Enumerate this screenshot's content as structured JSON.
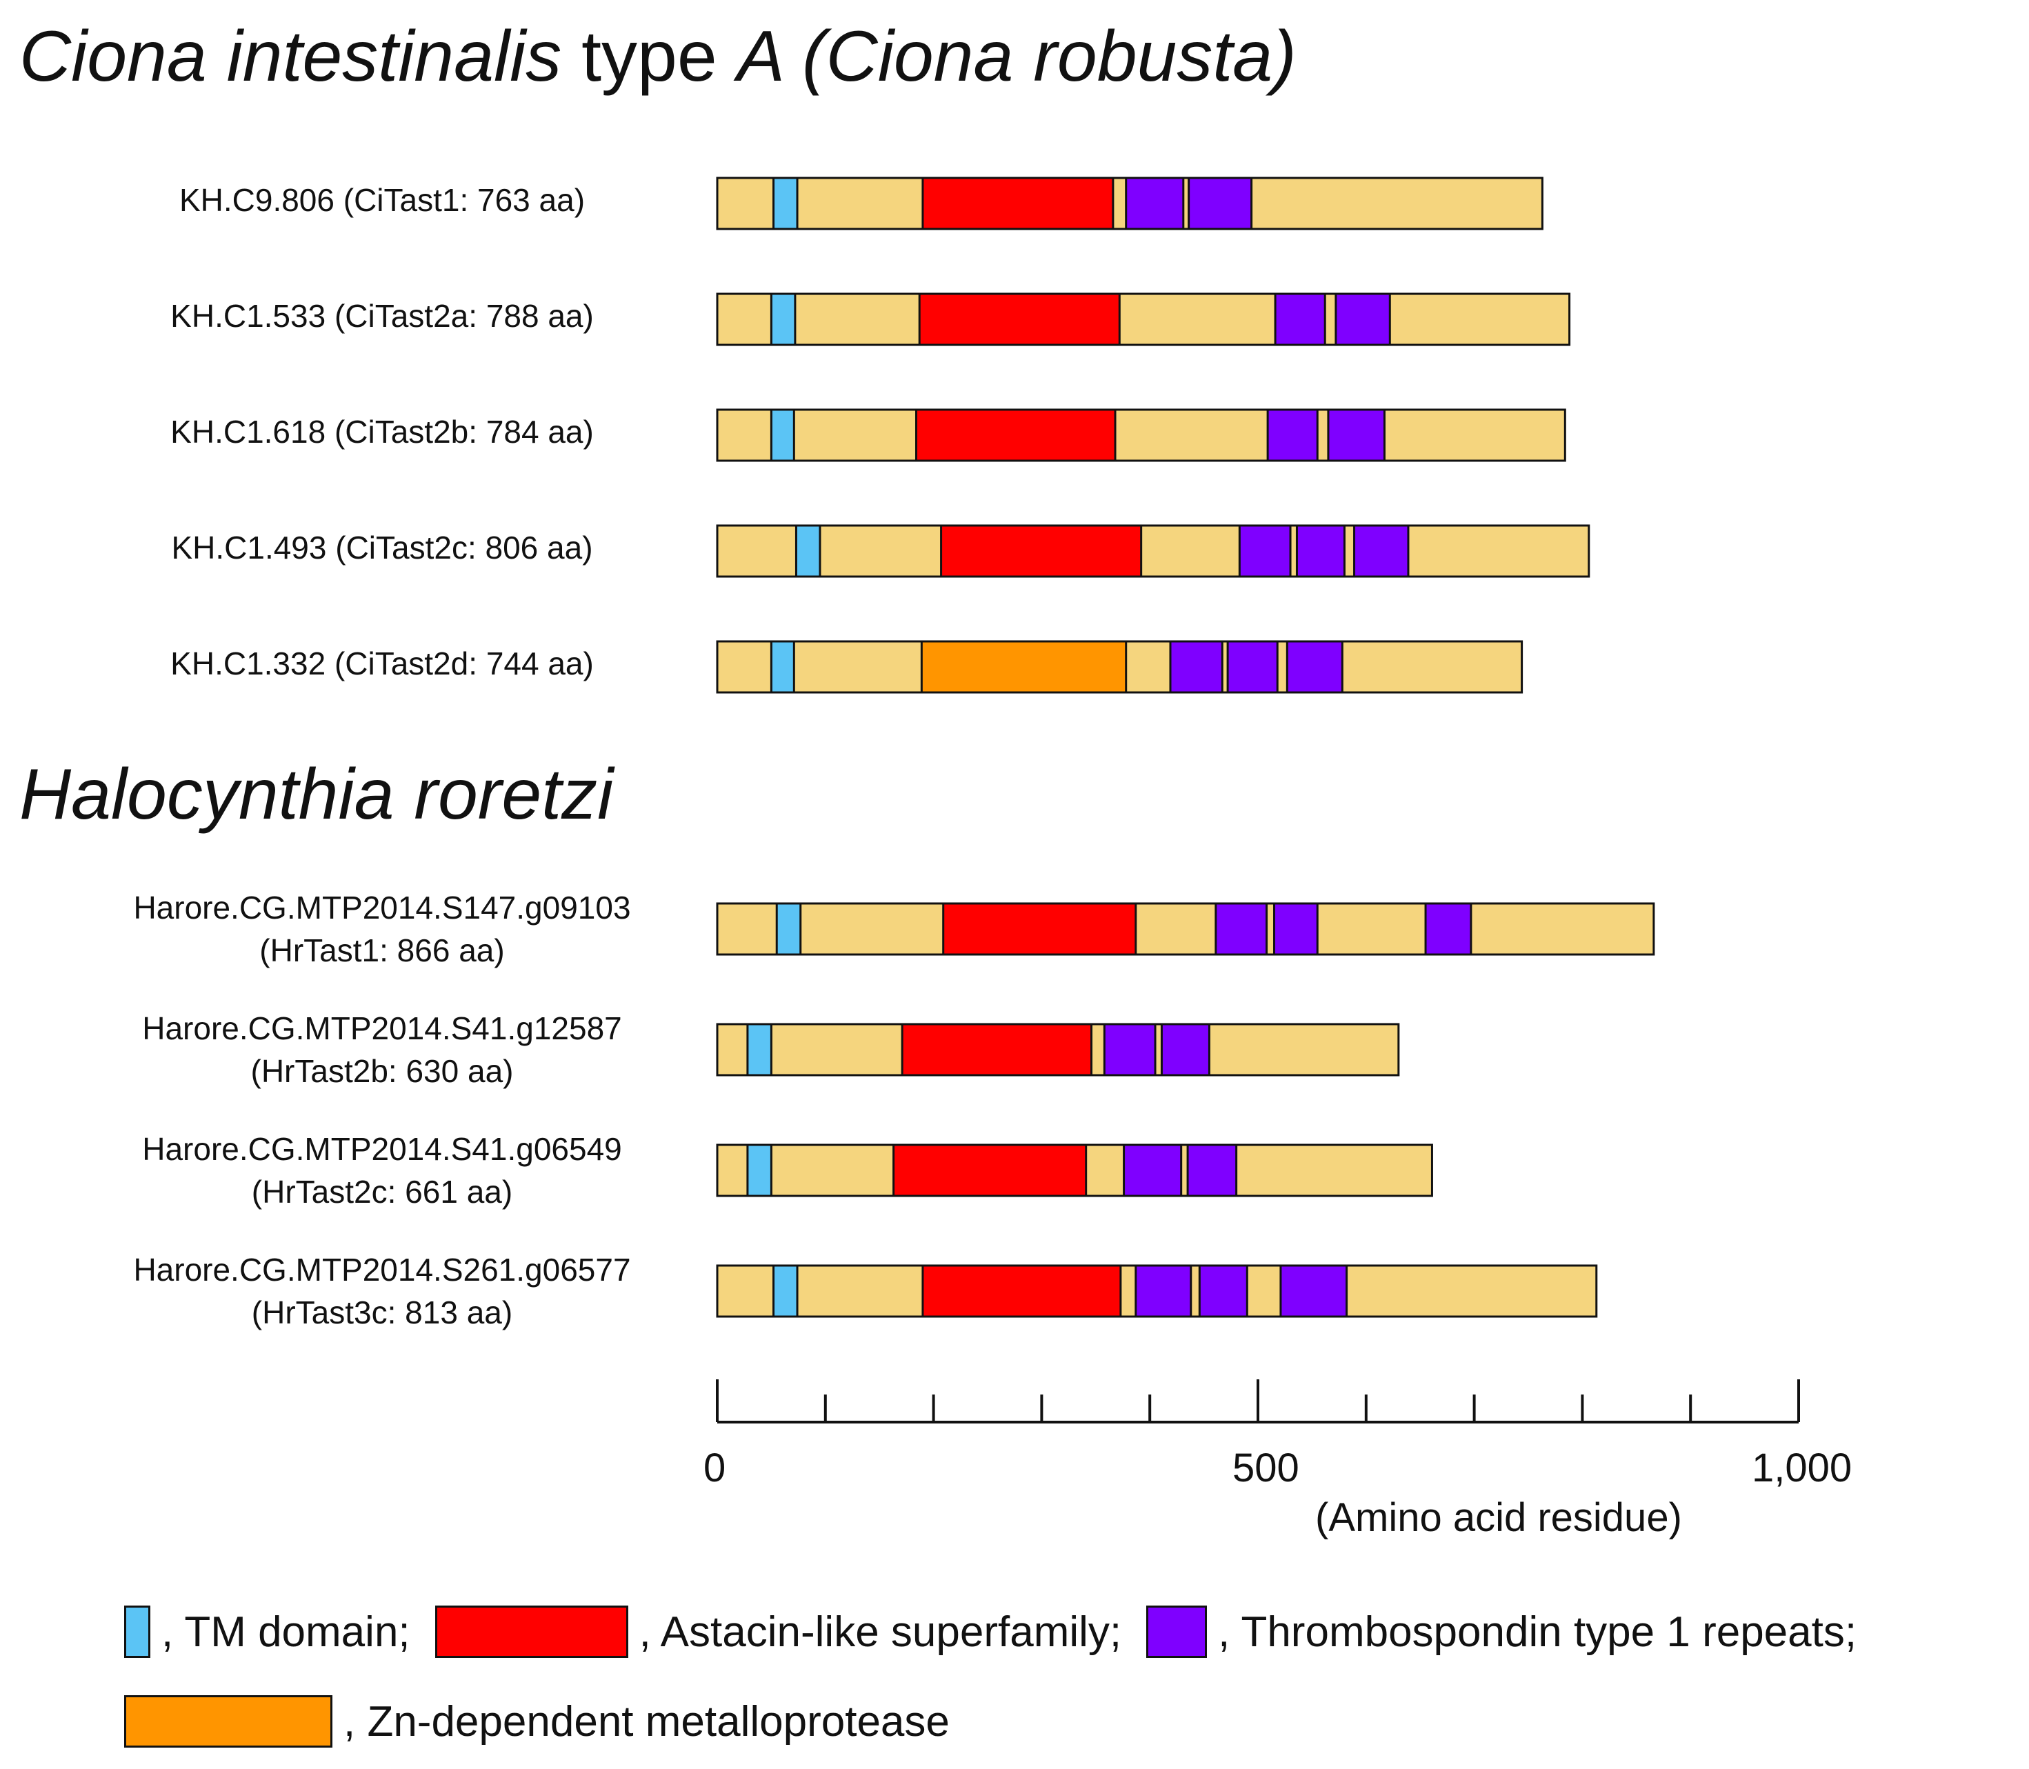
{
  "title_ciona": {
    "italic_1": "Ciona intestinalis",
    "plain": " type ",
    "italic_2": "A (Ciona robusta)"
  },
  "title_halo": "Halocynthia roretzi",
  "colors": {
    "background_bar": "#f5d57e",
    "tm": "#5bc4f5",
    "astacin": "#ff0000",
    "tsp1": "#7f00ff",
    "zn": "#ff9500",
    "border": "#111111"
  },
  "proteins": [
    {
      "line1": "KH.C9.806 (CiTast1: 763 aa)",
      "line2": "",
      "length": 763,
      "domains": [
        {
          "type": "tm",
          "start": 52,
          "end": 74
        },
        {
          "type": "astacin",
          "start": 190,
          "end": 366
        },
        {
          "type": "tsp1",
          "start": 378,
          "end": 431
        },
        {
          "type": "tsp1",
          "start": 436,
          "end": 494
        }
      ]
    },
    {
      "line1": "KH.C1.533 (CiTast2a: 788 aa)",
      "line2": "",
      "length": 788,
      "domains": [
        {
          "type": "tm",
          "start": 50,
          "end": 72
        },
        {
          "type": "astacin",
          "start": 187,
          "end": 372
        },
        {
          "type": "tsp1",
          "start": 516,
          "end": 562
        },
        {
          "type": "tsp1",
          "start": 572,
          "end": 622
        }
      ]
    },
    {
      "line1": "KH.C1.618 (CiTast2b: 784 aa)",
      "line2": "",
      "length": 784,
      "domains": [
        {
          "type": "tm",
          "start": 50,
          "end": 71
        },
        {
          "type": "astacin",
          "start": 184,
          "end": 368
        },
        {
          "type": "tsp1",
          "start": 509,
          "end": 555
        },
        {
          "type": "tsp1",
          "start": 565,
          "end": 617
        }
      ]
    },
    {
      "line1": "KH.C1.493 (CiTast2c: 806 aa)",
      "line2": "",
      "length": 806,
      "domains": [
        {
          "type": "tm",
          "start": 73,
          "end": 95
        },
        {
          "type": "astacin",
          "start": 207,
          "end": 392
        },
        {
          "type": "tsp1",
          "start": 483,
          "end": 530
        },
        {
          "type": "tsp1",
          "start": 536,
          "end": 580
        },
        {
          "type": "tsp1",
          "start": 589,
          "end": 639
        }
      ]
    },
    {
      "line1": "KH.C1.332 (CiTast2d: 744 aa)",
      "line2": "",
      "length": 744,
      "domains": [
        {
          "type": "tm",
          "start": 50,
          "end": 71
        },
        {
          "type": "zn",
          "start": 189,
          "end": 378
        },
        {
          "type": "tsp1",
          "start": 419,
          "end": 467
        },
        {
          "type": "tsp1",
          "start": 472,
          "end": 518
        },
        {
          "type": "tsp1",
          "start": 527,
          "end": 578
        }
      ]
    },
    {
      "line1": "Harore.CG.MTP2014.S147.g09103",
      "line2": "(HrTast1: 866 aa)",
      "length": 866,
      "domains": [
        {
          "type": "tm",
          "start": 55,
          "end": 77
        },
        {
          "type": "astacin",
          "start": 209,
          "end": 387
        },
        {
          "type": "tsp1",
          "start": 461,
          "end": 508
        },
        {
          "type": "tsp1",
          "start": 515,
          "end": 555
        },
        {
          "type": "tsp1",
          "start": 655,
          "end": 697
        }
      ]
    },
    {
      "line1": "Harore.CG.MTP2014.S41.g12587",
      "line2": "(HrTast2b: 630 aa)",
      "length": 630,
      "domains": [
        {
          "type": "tm",
          "start": 28,
          "end": 50
        },
        {
          "type": "astacin",
          "start": 171,
          "end": 346
        },
        {
          "type": "tsp1",
          "start": 358,
          "end": 405
        },
        {
          "type": "tsp1",
          "start": 411,
          "end": 455
        }
      ]
    },
    {
      "line1": "Harore.CG.MTP2014.S41.g06549",
      "line2": "(HrTast2c: 661 aa)",
      "length": 661,
      "domains": [
        {
          "type": "tm",
          "start": 28,
          "end": 50
        },
        {
          "type": "astacin",
          "start": 163,
          "end": 341
        },
        {
          "type": "tsp1",
          "start": 376,
          "end": 429
        },
        {
          "type": "tsp1",
          "start": 435,
          "end": 480
        }
      ]
    },
    {
      "line1": "Harore.CG.MTP2014.S261.g06577",
      "line2": "(HrTast3c: 813 aa)",
      "length": 813,
      "domains": [
        {
          "type": "tm",
          "start": 52,
          "end": 74
        },
        {
          "type": "astacin",
          "start": 190,
          "end": 373
        },
        {
          "type": "tsp1",
          "start": 387,
          "end": 438
        },
        {
          "type": "tsp1",
          "start": 446,
          "end": 490
        },
        {
          "type": "tsp1",
          "start": 521,
          "end": 582
        }
      ]
    }
  ],
  "axis": {
    "min": 0,
    "max": 1000,
    "minor_step": 100,
    "tick_labels": [
      {
        "value": 0,
        "label": "0"
      },
      {
        "value": 500,
        "label": "500"
      },
      {
        "value": 1000,
        "label": "1,000"
      }
    ],
    "title": "(Amino acid residue)"
  },
  "legend": {
    "tm": ", TM domain;",
    "astacin": ", Astacin-like superfamily;",
    "tsp1": ", Thrombospondin type 1 repeats;",
    "zn": ", Zn-dependent metalloprotease"
  }
}
